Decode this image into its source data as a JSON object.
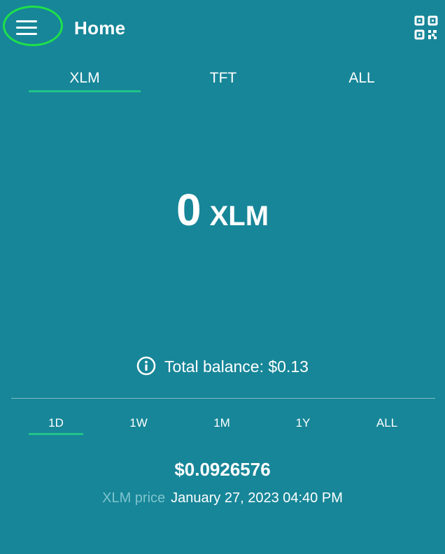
{
  "header": {
    "title": "Home",
    "menu_icon": "hamburger-menu-icon",
    "qr_icon": "qr-code-icon"
  },
  "asset_tabs": [
    {
      "label": "XLM",
      "selected": true
    },
    {
      "label": "TFT",
      "selected": false
    },
    {
      "label": "ALL",
      "selected": false
    }
  ],
  "balance": {
    "amount": "0",
    "unit": "XLM"
  },
  "total_balance": {
    "icon": "info-icon",
    "text": "Total balance: $0.13"
  },
  "period_tabs": [
    {
      "label": "1D",
      "selected": true
    },
    {
      "label": "1W",
      "selected": false
    },
    {
      "label": "1M",
      "selected": false
    },
    {
      "label": "1Y",
      "selected": false
    },
    {
      "label": "ALL",
      "selected": false
    }
  ],
  "price": {
    "value": "$0.0926576",
    "label": "XLM price",
    "timestamp": "January 27, 2023 04:40 PM"
  },
  "colors": {
    "background": "#178698",
    "accent_underline": "#22c38a",
    "highlight_ring": "#1fe04a",
    "muted_text": "#7ec4cf"
  }
}
